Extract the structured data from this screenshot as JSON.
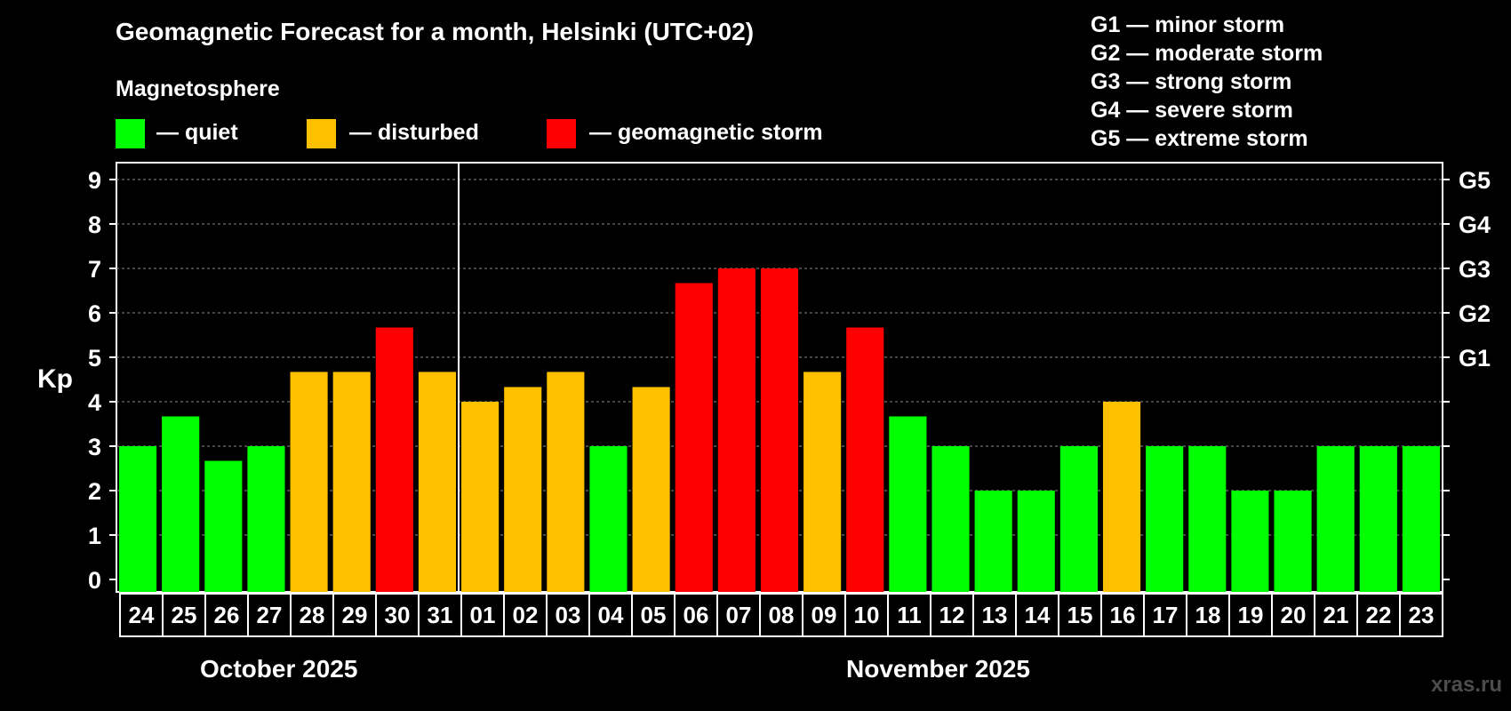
{
  "title": "Geomagnetic Forecast for a month, Helsinki (UTC+02)",
  "legend": {
    "heading": "Magnetosphere",
    "items": [
      {
        "label": "— quiet",
        "color": "#00ff00"
      },
      {
        "label": "— disturbed",
        "color": "#ffc000"
      },
      {
        "label": "— geomagnetic storm",
        "color": "#ff0000"
      }
    ]
  },
  "storm_scale": [
    "G1 — minor storm",
    "G2 — moderate storm",
    "G3 — strong storm",
    "G4 — severe storm",
    "G5 — extreme storm"
  ],
  "months": [
    "October 2025",
    "November 2025"
  ],
  "watermark": "xras.ru",
  "chart_data": {
    "type": "bar",
    "title": "Geomagnetic Forecast for a month, Helsinki (UTC+02)",
    "ylabel": "Kp",
    "xlabel": "",
    "ylim": [
      0,
      9
    ],
    "yticks": [
      "0",
      "1",
      "2",
      "3",
      "4",
      "5",
      "6",
      "7",
      "8",
      "9"
    ],
    "right_axis_labels": [
      {
        "value": 5,
        "label": "G1"
      },
      {
        "value": 6,
        "label": "G2"
      },
      {
        "value": 7,
        "label": "G3"
      },
      {
        "value": 8,
        "label": "G4"
      },
      {
        "value": 9,
        "label": "G5"
      }
    ],
    "categories": [
      "24",
      "25",
      "26",
      "27",
      "28",
      "29",
      "30",
      "31",
      "01",
      "02",
      "03",
      "04",
      "05",
      "06",
      "07",
      "08",
      "09",
      "10",
      "11",
      "12",
      "13",
      "14",
      "15",
      "16",
      "17",
      "18",
      "19",
      "20",
      "21",
      "22",
      "23"
    ],
    "values": [
      3,
      3.67,
      2.67,
      3,
      4.67,
      4.67,
      5.67,
      4.67,
      4,
      4.33,
      4.67,
      3,
      4.33,
      6.67,
      7,
      7,
      4.67,
      5.67,
      3.67,
      3,
      2,
      2,
      3,
      4,
      3,
      3,
      2,
      2,
      3,
      3,
      3
    ],
    "status": [
      "quiet",
      "quiet",
      "quiet",
      "quiet",
      "disturbed",
      "disturbed",
      "storm",
      "disturbed",
      "disturbed",
      "disturbed",
      "disturbed",
      "quiet",
      "disturbed",
      "storm",
      "storm",
      "storm",
      "disturbed",
      "storm",
      "quiet",
      "quiet",
      "quiet",
      "quiet",
      "quiet",
      "disturbed",
      "quiet",
      "quiet",
      "quiet",
      "quiet",
      "quiet",
      "quiet",
      "quiet"
    ],
    "colors": {
      "quiet": "#00ff00",
      "disturbed": "#ffc000",
      "storm": "#ff0000"
    },
    "month_split_index": 8,
    "grid": "dashed horizontal"
  }
}
